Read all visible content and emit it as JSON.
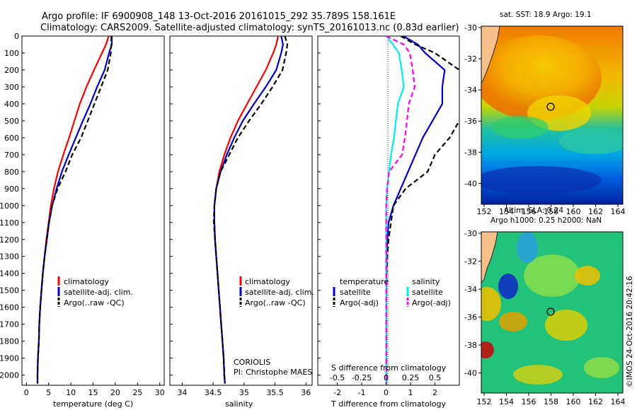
{
  "header": {
    "title_line1": "Argo profile: IF 6900908_148 13-Oct-2016 20161015_292 35.789S 158.161E",
    "title_line2": "Climatology: CARS2009. Satellite-adjusted climatology: synTS_20161013.nc (0.83d earlier)"
  },
  "colors": {
    "climatology": "#ff0000",
    "satellite_adj": "#0000cc",
    "argo": "#000000",
    "salinity_satellite": "#00eeee",
    "salinity_argo": "#ff00ff"
  },
  "depth_axis": {
    "ticks": [
      0,
      100,
      200,
      300,
      400,
      500,
      600,
      700,
      800,
      900,
      1000,
      1100,
      1200,
      1300,
      1400,
      1500,
      1600,
      1700,
      1800,
      1900,
      2000
    ],
    "range": [
      0,
      2060
    ]
  },
  "panels": {
    "temperature": {
      "xlabel": "temperature (deg C)",
      "xticks": [
        "0",
        "5",
        "10",
        "15",
        "20",
        "25",
        "30"
      ],
      "legend": [
        "climatology",
        "satellite-adj. clim.",
        "Argo(..raw -QC)"
      ]
    },
    "salinity": {
      "xlabel": "salinity",
      "xticks": [
        "34",
        "34.5",
        "35",
        "35.5",
        "36"
      ],
      "legend": [
        "climatology",
        "satellite-adj. clim.",
        "Argo(..raw -QC)"
      ],
      "note_line1": "CORIOLIS",
      "note_line2": "PI: Christophe MAES"
    },
    "difference": {
      "xlabel": "T difference from climatology",
      "top_label": "S difference from climatology",
      "xticks_T": [
        "-2",
        "-1",
        "0",
        "1",
        "2"
      ],
      "xticks_S": [
        "-0.5",
        "-0.25",
        "0",
        "0.25",
        "0.5"
      ],
      "legend_temperature_title": "temperature",
      "legend_salinity_title": "salinity",
      "legend_temperature": [
        "satellite",
        "Argo(-adj)"
      ],
      "legend_salinity": [
        "satellite",
        "Argo(-adj)"
      ]
    }
  },
  "maps": {
    "sst": {
      "title": "sat. SST: 18.9 Argo: 19.1",
      "yticks": [
        "-30",
        "-32",
        "-34",
        "-36",
        "-38",
        "-40"
      ],
      "xticks": [
        "152",
        "154",
        "156",
        "158",
        "160",
        "162",
        "164"
      ]
    },
    "sla": {
      "title_line1": "Altim. SLA: 0.24",
      "title_line2": "Argo h1000: 0.25 h2000: NaN",
      "yticks": [
        "-30",
        "-32",
        "-34",
        "-36",
        "-38",
        "-40"
      ],
      "xticks": [
        "152",
        "154",
        "156",
        "158",
        "160",
        "162",
        "164"
      ]
    },
    "credit": "©IMOS 24-Oct-2016 20:42:16"
  },
  "chart_data": [
    {
      "type": "line",
      "title": "",
      "xlabel": "temperature (deg C)",
      "ylabel": "",
      "xlim": [
        -1,
        31
      ],
      "ylim": [
        2060,
        0
      ],
      "series": [
        {
          "name": "climatology",
          "depth": [
            0,
            50,
            100,
            200,
            300,
            400,
            500,
            600,
            700,
            800,
            900,
            1000,
            1100,
            1200,
            1300,
            1400,
            1500,
            1600,
            1700,
            1800,
            1900,
            2000,
            2050
          ],
          "values": [
            18.5,
            17.9,
            17.0,
            15.2,
            13.5,
            12.0,
            10.8,
            9.6,
            8.3,
            7.1,
            6.2,
            5.5,
            5.0,
            4.5,
            4.1,
            3.7,
            3.4,
            3.1,
            2.9,
            2.8,
            2.6,
            2.5,
            2.5
          ]
        },
        {
          "name": "satellite-adj. clim.",
          "depth": [
            0,
            50,
            100,
            200,
            300,
            400,
            500,
            600,
            700,
            800,
            900,
            1000,
            1100,
            1200,
            1300,
            1400,
            1500,
            1600,
            1700,
            1800,
            1900,
            2000,
            2050
          ],
          "values": [
            19.2,
            19.2,
            18.6,
            17.6,
            15.9,
            14.4,
            12.7,
            11.1,
            9.5,
            8.0,
            6.8,
            5.8,
            5.1,
            4.6,
            4.1,
            3.7,
            3.4,
            3.1,
            2.9,
            2.8,
            2.6,
            2.5,
            2.5
          ]
        },
        {
          "name": "Argo(..raw -QC)",
          "depth": [
            0,
            50,
            100,
            200,
            300,
            400,
            500,
            600,
            700,
            800,
            900,
            1000,
            1100,
            1200,
            1300,
            1400,
            1500,
            1600,
            1700,
            1800,
            1900,
            2000,
            2050
          ],
          "values": [
            19.1,
            19.1,
            19.0,
            18.3,
            16.8,
            15.3,
            13.8,
            12.3,
            10.3,
            8.8,
            7.0,
            5.8,
            5.1,
            4.6,
            4.1,
            3.7,
            3.4,
            3.1,
            2.9,
            2.8,
            2.6,
            2.5,
            2.5
          ]
        }
      ]
    },
    {
      "type": "line",
      "title": "",
      "xlabel": "salinity",
      "ylabel": "",
      "xlim": [
        33.8,
        36.1
      ],
      "ylim": [
        2060,
        0
      ],
      "series": [
        {
          "name": "climatology",
          "depth": [
            0,
            50,
            100,
            200,
            300,
            400,
            500,
            600,
            700,
            800,
            900,
            1000,
            1100,
            1200,
            1300,
            1400,
            1500,
            1600,
            1700,
            1800,
            1900,
            2000,
            2050
          ],
          "values": [
            35.55,
            35.52,
            35.47,
            35.35,
            35.2,
            35.05,
            34.9,
            34.78,
            34.68,
            34.6,
            34.55,
            34.52,
            34.52,
            34.53,
            34.55,
            34.57,
            34.59,
            34.61,
            34.63,
            34.65,
            34.67,
            34.68,
            34.69
          ]
        },
        {
          "name": "satellite-adj. clim.",
          "depth": [
            0,
            50,
            100,
            200,
            300,
            400,
            500,
            600,
            700,
            800,
            900,
            1000,
            1100,
            1200,
            1300,
            1400,
            1500,
            1600,
            1700,
            1800,
            1900,
            2000,
            2050
          ],
          "values": [
            35.6,
            35.63,
            35.6,
            35.52,
            35.35,
            35.16,
            34.98,
            34.84,
            34.72,
            34.62,
            34.55,
            34.52,
            34.52,
            34.53,
            34.55,
            34.57,
            34.59,
            34.61,
            34.63,
            34.65,
            34.67,
            34.68,
            34.69
          ]
        },
        {
          "name": "Argo(..raw -QC)",
          "depth": [
            0,
            50,
            100,
            200,
            300,
            400,
            500,
            600,
            700,
            800,
            900,
            1000,
            1100,
            1200,
            1300,
            1400,
            1500,
            1600,
            1700,
            1800,
            1900,
            2000,
            2050
          ],
          "values": [
            35.66,
            35.7,
            35.68,
            35.62,
            35.46,
            35.28,
            35.08,
            34.9,
            34.76,
            34.62,
            34.55,
            34.52,
            34.51,
            34.53,
            34.55,
            34.57,
            34.59,
            34.61,
            34.63,
            34.65,
            34.67,
            34.68,
            34.69
          ]
        }
      ]
    },
    {
      "type": "line",
      "title": "",
      "xlabel": "T difference from climatology",
      "ylabel": "",
      "xlim": [
        -2.8,
        3.0
      ],
      "ylim": [
        2060,
        0
      ],
      "series": [
        {
          "name": "temperature satellite",
          "depth": [
            0,
            50,
            100,
            200,
            300,
            400,
            500,
            600,
            700,
            800,
            900,
            1000,
            1100,
            1200,
            1300,
            1400,
            1500,
            1600,
            1700,
            1800,
            1900,
            2000,
            2050
          ],
          "values": [
            0.7,
            1.3,
            1.6,
            2.4,
            2.3,
            2.3,
            1.9,
            1.5,
            1.2,
            0.9,
            0.6,
            0.3,
            0.1,
            0.05,
            0,
            0,
            0,
            0,
            0,
            0,
            0,
            0,
            0
          ]
        },
        {
          "name": "temperature Argo(-adj)",
          "depth": [
            0,
            50,
            100,
            200,
            300,
            400,
            500,
            600,
            700,
            800,
            900,
            1000,
            1100,
            1200,
            1300,
            1400,
            1500,
            1600,
            1700,
            1800,
            1900,
            2000,
            2050
          ],
          "values": [
            0.6,
            1.2,
            2.0,
            3.0,
            3.3,
            3.3,
            3.0,
            2.6,
            2.0,
            1.7,
            0.8,
            0.3,
            0.2,
            0.1,
            0.05,
            0.02,
            0,
            0,
            0,
            0,
            0,
            0,
            0
          ]
        },
        {
          "name": "salinity satellite",
          "depth": [
            0,
            50,
            100,
            200,
            300,
            400,
            500,
            600,
            700,
            800,
            900,
            1000,
            1100,
            1200,
            1300,
            1400,
            1500,
            1600,
            1700,
            1800,
            1900,
            2000,
            2050
          ],
          "values": [
            0.0,
            0.07,
            0.13,
            0.16,
            0.18,
            0.12,
            0.1,
            0.08,
            0.05,
            0.03,
            0.01,
            0,
            0,
            0,
            0,
            0,
            0,
            0,
            0,
            0,
            0,
            0,
            0
          ]
        }
      ]
    }
  ]
}
